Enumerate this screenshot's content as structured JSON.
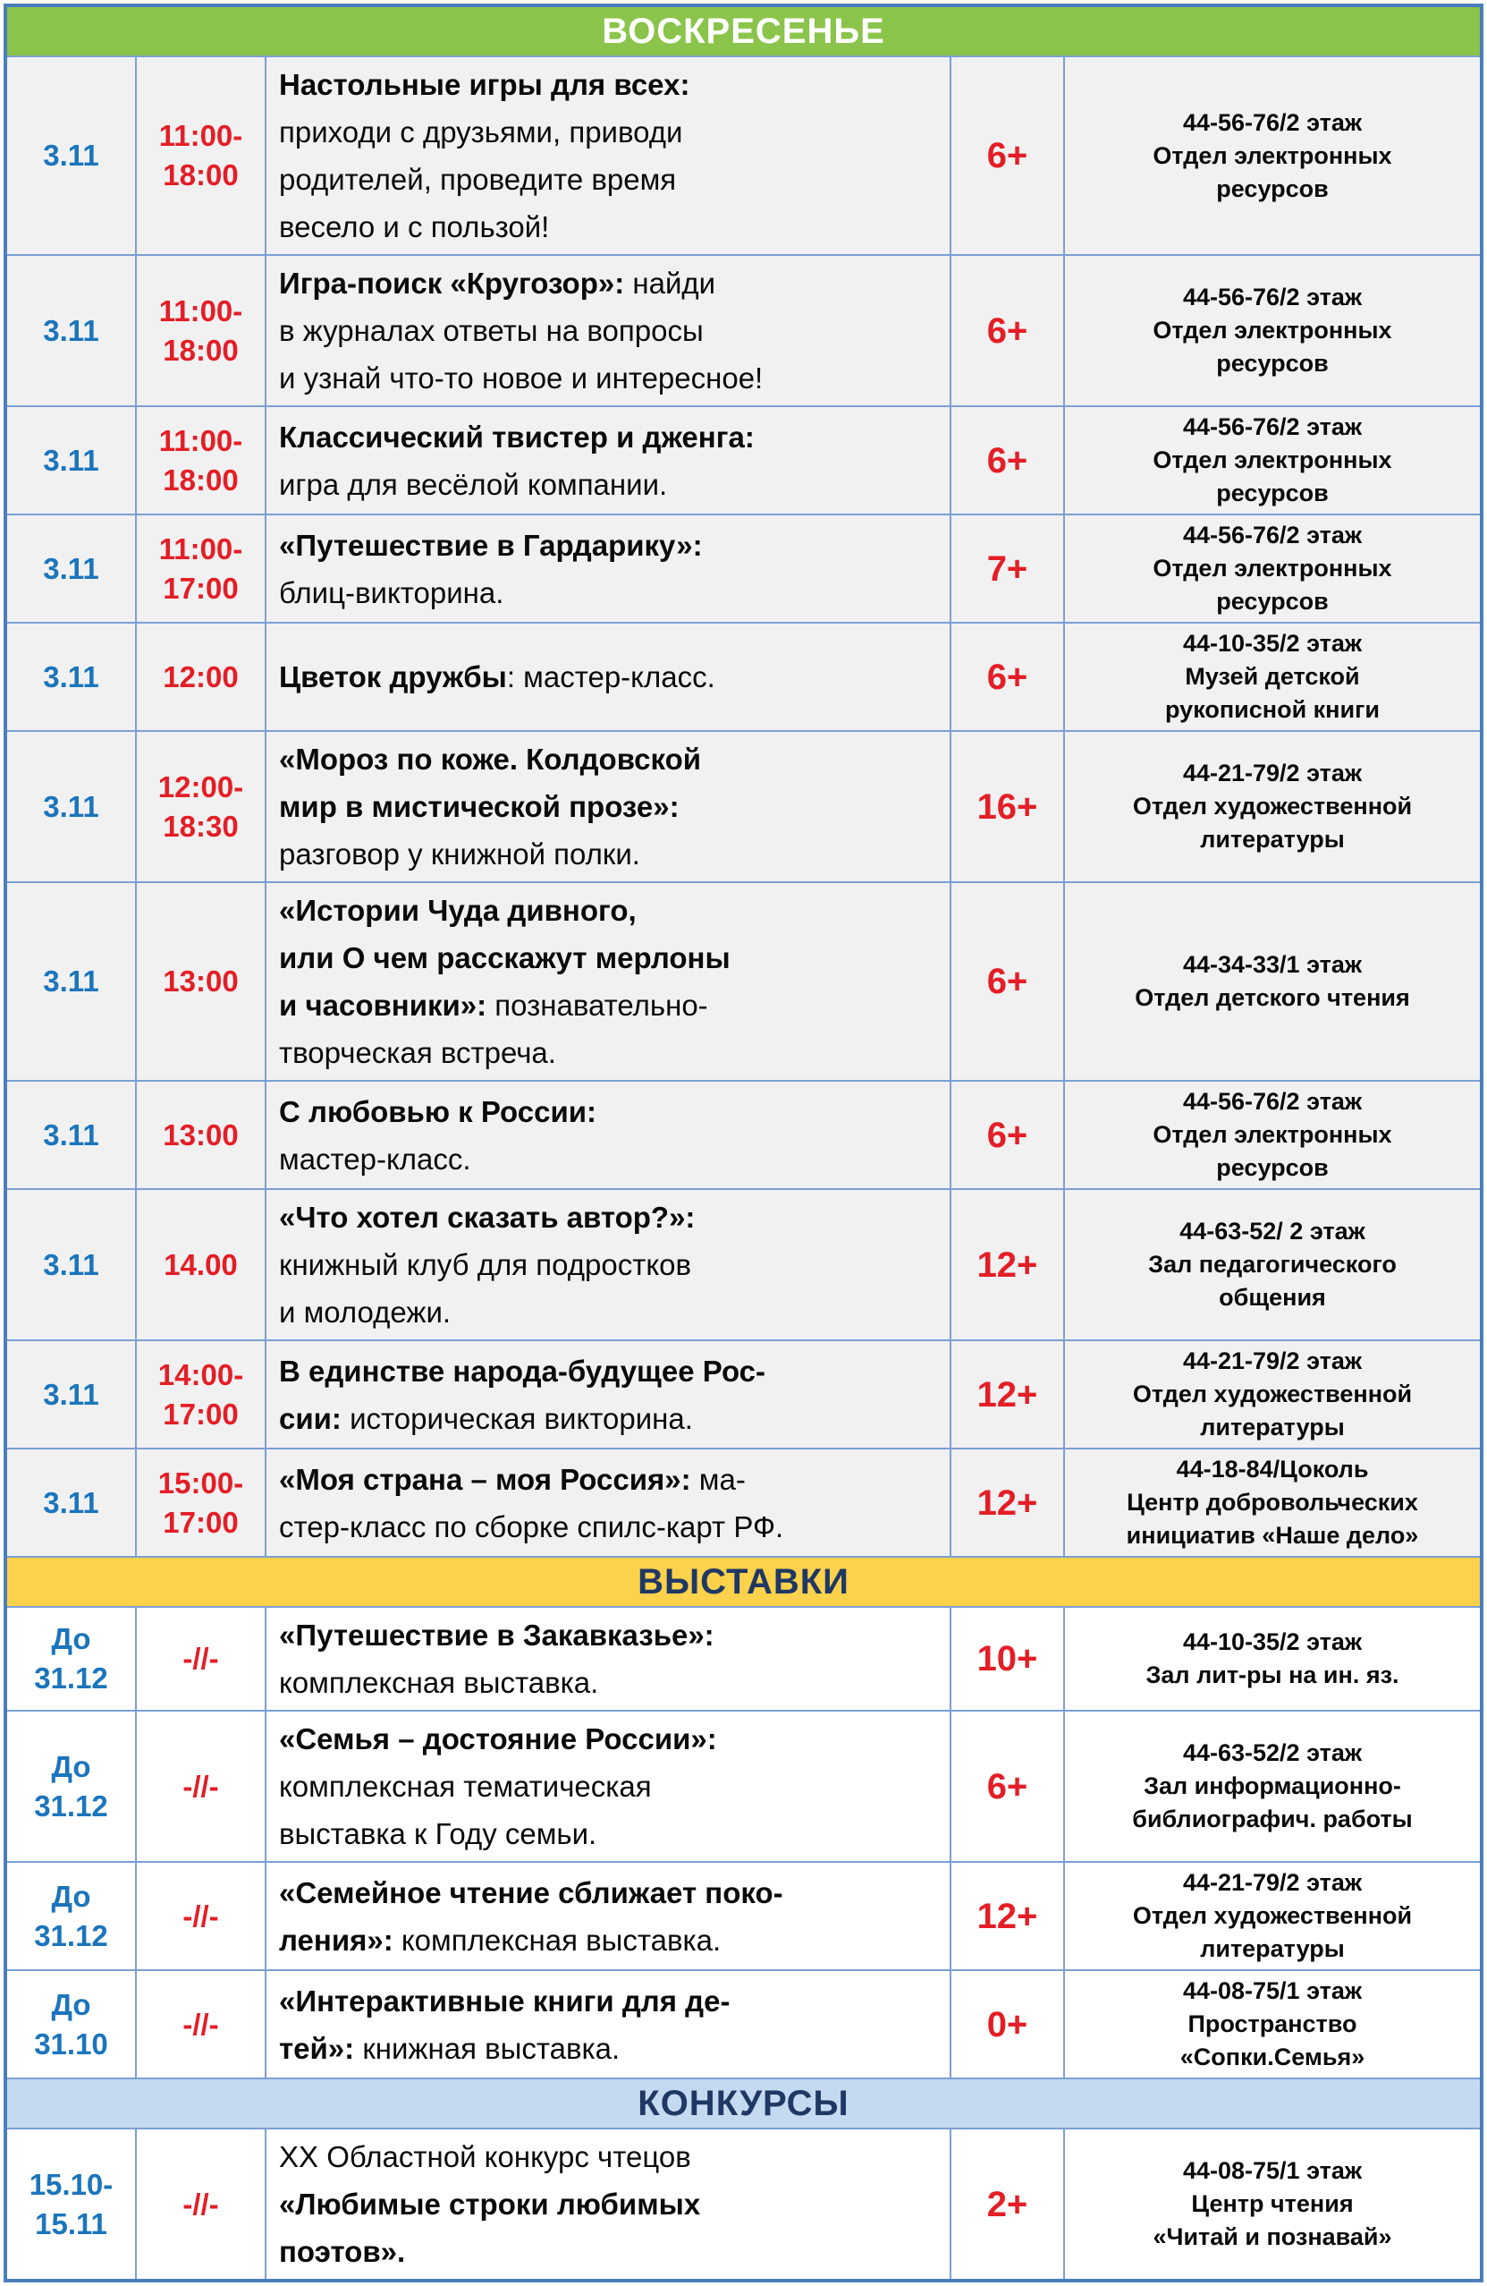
{
  "palette": {
    "outer_border": "#4a7ebb",
    "grid_line": "#7ba0d4",
    "date_color": "#1b75bc",
    "time_color": "#e41e26",
    "age_color": "#e41e26",
    "text_color": "#0a0a0a",
    "sunday_row_bg": "#f1f1f1",
    "white_row_bg": "#ffffff"
  },
  "table": {
    "sections": [
      {
        "id": "sunday",
        "header": {
          "label": "ВОСКРЕСЕНЬЕ",
          "bg": "#8bc44a",
          "color": "#ffffff"
        },
        "row_bg": "#f1f1f1",
        "rows": [
          {
            "date_lines": [
              "3.11"
            ],
            "time_lines": [
              "11:00-",
              "18:00"
            ],
            "desc_lines": [
              [
                {
                  "t": "Настольные игры для всех:",
                  "b": true
                }
              ],
              [
                {
                  "t": "приходи с друзьями, приводи",
                  "b": false
                }
              ],
              [
                {
                  "t": "родителей, проведите время",
                  "b": false
                }
              ],
              [
                {
                  "t": "весело и с пользой!",
                  "b": false
                }
              ]
            ],
            "age": "6+",
            "loc_lines": [
              "44-56-76/2 этаж",
              "Отдел электронных",
              "ресурсов"
            ]
          },
          {
            "date_lines": [
              "3.11"
            ],
            "time_lines": [
              "11:00-",
              "18:00"
            ],
            "desc_lines": [
              [
                {
                  "t": "Игра-поиск «Кругозор»:",
                  "b": true
                },
                {
                  "t": " найди",
                  "b": false
                }
              ],
              [
                {
                  "t": "в журналах ответы на вопросы",
                  "b": false
                }
              ],
              [
                {
                  "t": "и узнай что-то новое и интересное!",
                  "b": false
                }
              ]
            ],
            "age": "6+",
            "loc_lines": [
              "44-56-76/2 этаж",
              "Отдел электронных",
              "ресурсов"
            ]
          },
          {
            "date_lines": [
              "3.11"
            ],
            "time_lines": [
              "11:00-",
              "18:00"
            ],
            "desc_lines": [
              [
                {
                  "t": "Классический твистер и дженга:",
                  "b": true
                }
              ],
              [
                {
                  "t": "игра для весёлой компании.",
                  "b": false
                }
              ]
            ],
            "age": "6+",
            "loc_lines": [
              "44-56-76/2 этаж",
              "Отдел электронных",
              "ресурсов"
            ]
          },
          {
            "date_lines": [
              "3.11"
            ],
            "time_lines": [
              "11:00-",
              "17:00"
            ],
            "desc_lines": [
              [
                {
                  "t": "«Путешествие в Гардарику»:",
                  "b": true
                }
              ],
              [
                {
                  "t": "блиц-викторина.",
                  "b": false
                }
              ]
            ],
            "age": "7+",
            "loc_lines": [
              "44-56-76/2 этаж",
              "Отдел электронных",
              "ресурсов"
            ]
          },
          {
            "date_lines": [
              "3.11"
            ],
            "time_lines": [
              "12:00"
            ],
            "desc_lines": [
              [
                {
                  "t": "Цветок дружбы",
                  "b": true
                },
                {
                  "t": ": мастер-класс.",
                  "b": false
                }
              ]
            ],
            "age": "6+",
            "loc_lines": [
              "44-10-35/2 этаж",
              "Музей детской",
              "рукописной книги"
            ]
          },
          {
            "date_lines": [
              "3.11"
            ],
            "time_lines": [
              "12:00-",
              "18:30"
            ],
            "desc_lines": [
              [
                {
                  "t": "«Мороз по коже. Колдовской",
                  "b": true
                }
              ],
              [
                {
                  "t": "мир в мистической прозе»:",
                  "b": true
                }
              ],
              [
                {
                  "t": "разговор у книжной полки.",
                  "b": false
                }
              ]
            ],
            "age": "16+",
            "loc_lines": [
              "44-21-79/2 этаж",
              "Отдел художественной",
              "литературы"
            ]
          },
          {
            "date_lines": [
              "3.11"
            ],
            "time_lines": [
              "13:00"
            ],
            "desc_lines": [
              [
                {
                  "t": "«Истории Чуда дивного,",
                  "b": true
                }
              ],
              [
                {
                  "t": "или О чем расскажут мерлоны",
                  "b": true
                }
              ],
              [
                {
                  "t": "и часовники»:",
                  "b": true
                },
                {
                  "t": " познавательно-",
                  "b": false
                }
              ],
              [
                {
                  "t": "творческая встреча.",
                  "b": false
                }
              ]
            ],
            "age": "6+",
            "loc_lines": [
              "44-34-33/1 этаж",
              "Отдел детского чтения"
            ]
          },
          {
            "date_lines": [
              "3.11"
            ],
            "time_lines": [
              "13:00"
            ],
            "desc_lines": [
              [
                {
                  "t": "С любовью к России:",
                  "b": true
                }
              ],
              [
                {
                  "t": "мастер-класс.",
                  "b": false
                }
              ]
            ],
            "age": "6+",
            "loc_lines": [
              "44-56-76/2 этаж",
              "Отдел электронных",
              "ресурсов"
            ]
          },
          {
            "date_lines": [
              "3.11"
            ],
            "time_lines": [
              "14.00"
            ],
            "desc_lines": [
              [
                {
                  "t": "«Что хотел сказать автор?»:",
                  "b": true
                }
              ],
              [
                {
                  "t": "книжный клуб для подростков",
                  "b": false
                }
              ],
              [
                {
                  "t": "и молодежи.",
                  "b": false
                }
              ]
            ],
            "age": "12+",
            "loc_lines": [
              "44-63-52/ 2 этаж",
              "Зал педагогического",
              "общения"
            ]
          },
          {
            "date_lines": [
              "3.11"
            ],
            "time_lines": [
              "14:00-",
              "17:00"
            ],
            "desc_lines": [
              [
                {
                  "t": "В единстве народа-будущее Рос-",
                  "b": true
                }
              ],
              [
                {
                  "t": "сии:",
                  "b": true
                },
                {
                  "t": " историческая викторина.",
                  "b": false
                }
              ]
            ],
            "age": "12+",
            "loc_lines": [
              "44-21-79/2 этаж",
              "Отдел художественной",
              "литературы"
            ]
          },
          {
            "date_lines": [
              "3.11"
            ],
            "time_lines": [
              "15:00-",
              "17:00"
            ],
            "desc_lines": [
              [
                {
                  "t": "«Моя страна – моя Россия»:",
                  "b": true
                },
                {
                  "t": " ма-",
                  "b": false
                }
              ],
              [
                {
                  "t": "стер-класс по сборке спилс-карт РФ.",
                  "b": false
                }
              ]
            ],
            "age": "12+",
            "loc_lines": [
              "44-18-84/Цоколь",
              "Центр добровольческих",
              "инициатив «Наше дело»"
            ]
          }
        ]
      },
      {
        "id": "exhibitions",
        "header": {
          "label": "ВЫСТАВКИ",
          "bg": "#fcd14b",
          "color": "#1f3864"
        },
        "row_bg": "#ffffff",
        "rows": [
          {
            "date_lines": [
              "До",
              "31.12"
            ],
            "time_lines": [
              "-//-"
            ],
            "desc_lines": [
              [
                {
                  "t": "«Путешествие в Закавказье»:",
                  "b": true
                }
              ],
              [
                {
                  "t": "комплексная выставка.",
                  "b": false
                }
              ]
            ],
            "age": "10+",
            "loc_lines": [
              "44-10-35/2 этаж",
              "Зал лит-ры на ин. яз."
            ]
          },
          {
            "date_lines": [
              "До",
              "31.12"
            ],
            "time_lines": [
              "-//-"
            ],
            "desc_lines": [
              [
                {
                  "t": "«Семья – достояние России»:",
                  "b": true
                }
              ],
              [
                {
                  "t": "комплексная тематическая",
                  "b": false
                }
              ],
              [
                {
                  "t": "выставка к Году семьи.",
                  "b": false
                }
              ]
            ],
            "age": "6+",
            "loc_lines": [
              "44-63-52/2 этаж",
              "Зал информационно-",
              "библиографич. работы"
            ]
          },
          {
            "date_lines": [
              "До",
              "31.12"
            ],
            "time_lines": [
              "-//-"
            ],
            "desc_lines": [
              [
                {
                  "t": "«Семейное чтение сближает поко-",
                  "b": true
                }
              ],
              [
                {
                  "t": "ления»:",
                  "b": true
                },
                {
                  "t": " комплексная выставка.",
                  "b": false
                }
              ]
            ],
            "age": "12+",
            "loc_lines": [
              "44-21-79/2 этаж",
              "Отдел художественной",
              "литературы"
            ]
          },
          {
            "date_lines": [
              "До",
              "31.10"
            ],
            "time_lines": [
              "-//-"
            ],
            "desc_lines": [
              [
                {
                  "t": "«Интерактивные книги для де-",
                  "b": true
                }
              ],
              [
                {
                  "t": "тей»:",
                  "b": true
                },
                {
                  "t": " книжная выставка.",
                  "b": false
                }
              ]
            ],
            "age": "0+",
            "loc_lines": [
              "44-08-75/1 этаж",
              "Пространство",
              "«Сопки.Семья»"
            ]
          }
        ]
      },
      {
        "id": "contests",
        "header": {
          "label": "КОНКУРСЫ",
          "bg": "#c5d9f1",
          "color": "#1f3864"
        },
        "row_bg": "#ffffff",
        "rows": [
          {
            "date_lines": [
              "15.10-",
              "15.11"
            ],
            "time_lines": [
              "-//-"
            ],
            "desc_lines": [
              [
                {
                  "t": "XX Областной конкурс чтецов",
                  "b": false
                }
              ],
              [
                {
                  "t": "«Любимые строки любимых",
                  "b": true
                }
              ],
              [
                {
                  "t": "поэтов».",
                  "b": true
                }
              ]
            ],
            "age": "2+",
            "loc_lines": [
              "44-08-75/1 этаж",
              "Центр чтения",
              "«Читай и познавай»"
            ]
          }
        ]
      }
    ]
  }
}
